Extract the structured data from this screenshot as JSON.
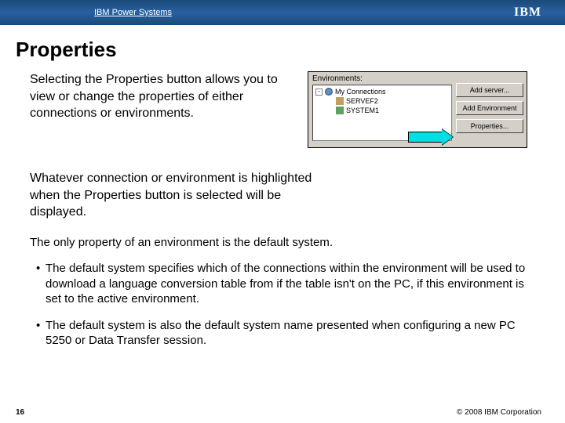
{
  "header": {
    "brand": "IBM Power Systems",
    "logo_text": "IBM"
  },
  "title": "Properties",
  "intro": "Selecting the Properties button allows you to view or change the properties of either connections or environments.",
  "env_panel": {
    "label": "Environments:",
    "tree": {
      "root": "My Connections",
      "item1": "SERVEF2",
      "item2": "SYSTEM1"
    },
    "buttons": {
      "add_server": "Add server...",
      "add_env": "Add Environment",
      "properties": "Properties..."
    }
  },
  "para2": "Whatever connection or environment is highlighted when the Properties button is selected will be displayed.",
  "para3": "The only property of an environment is the default system.",
  "bullet1": "The default system specifies which of the connections within the environment will be used to download a language conversion table from if the table isn't on the PC, if this environment is set to the active environment.",
  "bullet2": "The default system is also the default system name presented when configuring a new PC 5250 or Data Transfer session.",
  "footer": {
    "page": "16",
    "copyright": "© 2008 IBM Corporation"
  },
  "colors": {
    "header_gradient_dark": "#1a4a7a",
    "header_gradient_light": "#2860a0",
    "arrow_fill": "#00e0e0",
    "panel_bg": "#d4d0c8"
  }
}
